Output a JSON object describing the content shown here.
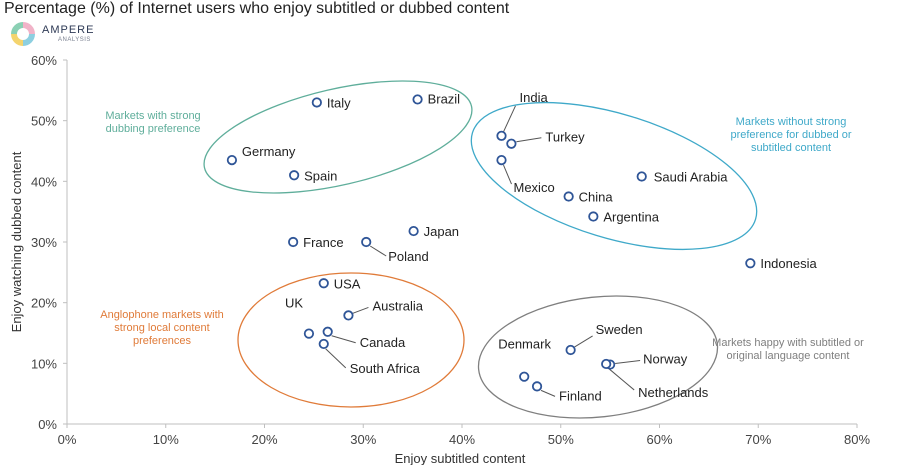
{
  "header": {
    "title": "Percentage (%) of Internet users who enjoy subtitled or dubbed content",
    "logo_name": "AMPERE",
    "logo_sub": "ANALYSIS"
  },
  "colors": {
    "marker": "#2f5597",
    "teal": "#5fae9b",
    "blue": "#3fa9c9",
    "orange": "#e07b39",
    "gray": "#7f7f7f",
    "logo": [
      "#f1b3c8",
      "#8dcfe0",
      "#f4d46e",
      "#8bd0b4"
    ]
  },
  "chart_data": {
    "type": "scatter",
    "xlabel": "Enjoy subtitled content",
    "ylabel": "Enjoy watching dubbed content",
    "xlim": [
      0,
      80
    ],
    "ylim": [
      0,
      60
    ],
    "x_ticks": [
      "0%",
      "10%",
      "20%",
      "30%",
      "40%",
      "50%",
      "60%",
      "70%",
      "80%"
    ],
    "y_ticks": [
      "0%",
      "10%",
      "20%",
      "30%",
      "40%",
      "50%",
      "60%"
    ],
    "grid": false,
    "points": [
      {
        "label": "Italy",
        "x": 25.3,
        "y": 53.0
      },
      {
        "label": "Brazil",
        "x": 35.5,
        "y": 53.5
      },
      {
        "label": "Germany",
        "x": 16.7,
        "y": 43.5
      },
      {
        "label": "Spain",
        "x": 23.0,
        "y": 41.0
      },
      {
        "label": "India",
        "x": 44.0,
        "y": 47.5
      },
      {
        "label": "Turkey",
        "x": 45.0,
        "y": 46.2
      },
      {
        "label": "Mexico",
        "x": 44.0,
        "y": 43.5
      },
      {
        "label": "China",
        "x": 50.8,
        "y": 37.5
      },
      {
        "label": "Argentina",
        "x": 53.3,
        "y": 34.2
      },
      {
        "label": "Saudi Arabia",
        "x": 58.2,
        "y": 40.8
      },
      {
        "label": "France",
        "x": 22.9,
        "y": 30.0
      },
      {
        "label": "Poland",
        "x": 30.3,
        "y": 30.0
      },
      {
        "label": "Japan",
        "x": 35.1,
        "y": 31.8
      },
      {
        "label": "Indonesia",
        "x": 69.2,
        "y": 26.5
      },
      {
        "label": "USA",
        "x": 26.0,
        "y": 23.2
      },
      {
        "label": "Australia",
        "x": 28.5,
        "y": 17.9
      },
      {
        "label": "UK",
        "x": 24.5,
        "y": 14.9
      },
      {
        "label": "Canada",
        "x": 26.4,
        "y": 15.2
      },
      {
        "label": "South Africa",
        "x": 26.0,
        "y": 13.2
      },
      {
        "label": "Denmark",
        "x": 46.3,
        "y": 7.8
      },
      {
        "label": "Finland",
        "x": 47.6,
        "y": 6.2
      },
      {
        "label": "Sweden",
        "x": 51.0,
        "y": 12.2
      },
      {
        "label": "Norway",
        "x": 55.0,
        "y": 9.8
      },
      {
        "label": "Netherlands",
        "x": 54.6,
        "y": 9.9
      }
    ],
    "annotations": [
      {
        "text": [
          "Markets with strong",
          "dubbing preference"
        ],
        "color_key": "teal"
      },
      {
        "text": [
          "Markets without strong",
          "preference for dubbed or",
          "subtitled content"
        ],
        "color_key": "blue"
      },
      {
        "text": [
          "Anglophone markets with",
          "strong local content",
          "preferences"
        ],
        "color_key": "orange"
      },
      {
        "text": [
          "Markets happy with subtitled or",
          "original language content"
        ],
        "color_key": "gray"
      }
    ]
  }
}
